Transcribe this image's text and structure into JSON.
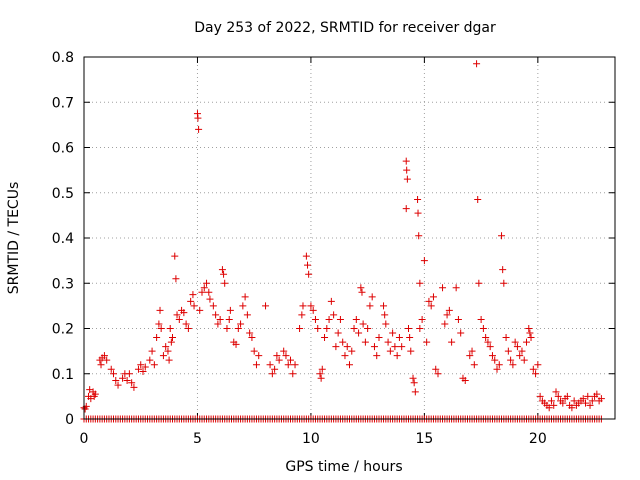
{
  "chart_data": {
    "type": "scatter",
    "title": "Day 253 of 2022, SRMTID for receiver dgar",
    "xlabel": "GPS time / hours",
    "ylabel": "SRMTID / TECUs",
    "xlim": [
      0,
      23.4
    ],
    "ylim": [
      0,
      0.8
    ],
    "xticks": [
      0,
      5,
      10,
      15,
      20
    ],
    "yticks": [
      0,
      0.1,
      0.2,
      0.3,
      0.4,
      0.5,
      0.6,
      0.7,
      0.8
    ],
    "ytick_labels": [
      "0",
      "0.1",
      "0.2",
      "0.3",
      "0.4",
      "0.5",
      "0.6",
      "0.7",
      "0.8"
    ],
    "grid": true,
    "marker": "plus",
    "color": "#dd0000",
    "series": [
      {
        "name": "SRMTID",
        "points": [
          [
            0.0,
            0.025
          ],
          [
            0.05,
            0.022
          ],
          [
            0.1,
            0.028
          ],
          [
            0.2,
            0.05
          ],
          [
            0.25,
            0.065
          ],
          [
            0.3,
            0.045
          ],
          [
            0.4,
            0.06
          ],
          [
            0.45,
            0.05
          ],
          [
            0.5,
            0.055
          ],
          [
            0.7,
            0.13
          ],
          [
            0.75,
            0.12
          ],
          [
            0.8,
            0.135
          ],
          [
            0.9,
            0.14
          ],
          [
            1.0,
            0.13
          ],
          [
            1.2,
            0.11
          ],
          [
            1.3,
            0.1
          ],
          [
            1.4,
            0.085
          ],
          [
            1.5,
            0.075
          ],
          [
            1.7,
            0.09
          ],
          [
            1.8,
            0.1
          ],
          [
            1.9,
            0.085
          ],
          [
            2.0,
            0.1
          ],
          [
            2.1,
            0.08
          ],
          [
            2.2,
            0.07
          ],
          [
            2.4,
            0.11
          ],
          [
            2.5,
            0.12
          ],
          [
            2.6,
            0.105
          ],
          [
            2.7,
            0.115
          ],
          [
            2.9,
            0.13
          ],
          [
            3.0,
            0.15
          ],
          [
            3.1,
            0.12
          ],
          [
            3.2,
            0.18
          ],
          [
            3.3,
            0.21
          ],
          [
            3.35,
            0.24
          ],
          [
            3.4,
            0.2
          ],
          [
            3.5,
            0.14
          ],
          [
            3.6,
            0.16
          ],
          [
            3.7,
            0.15
          ],
          [
            3.75,
            0.13
          ],
          [
            3.8,
            0.2
          ],
          [
            3.85,
            0.17
          ],
          [
            3.9,
            0.18
          ],
          [
            4.0,
            0.36
          ],
          [
            4.05,
            0.31
          ],
          [
            4.1,
            0.23
          ],
          [
            4.2,
            0.22
          ],
          [
            4.3,
            0.24
          ],
          [
            4.4,
            0.235
          ],
          [
            4.5,
            0.21
          ],
          [
            4.6,
            0.2
          ],
          [
            4.7,
            0.26
          ],
          [
            4.8,
            0.275
          ],
          [
            4.85,
            0.25
          ],
          [
            5.0,
            0.675
          ],
          [
            5.02,
            0.665
          ],
          [
            5.05,
            0.64
          ],
          [
            5.1,
            0.24
          ],
          [
            5.2,
            0.28
          ],
          [
            5.3,
            0.29
          ],
          [
            5.4,
            0.3
          ],
          [
            5.5,
            0.28
          ],
          [
            5.55,
            0.265
          ],
          [
            5.7,
            0.25
          ],
          [
            5.8,
            0.23
          ],
          [
            5.9,
            0.21
          ],
          [
            6.0,
            0.22
          ],
          [
            6.1,
            0.33
          ],
          [
            6.15,
            0.32
          ],
          [
            6.2,
            0.3
          ],
          [
            6.3,
            0.2
          ],
          [
            6.4,
            0.22
          ],
          [
            6.45,
            0.24
          ],
          [
            6.6,
            0.17
          ],
          [
            6.7,
            0.165
          ],
          [
            6.8,
            0.2
          ],
          [
            6.9,
            0.21
          ],
          [
            7.0,
            0.25
          ],
          [
            7.1,
            0.27
          ],
          [
            7.2,
            0.23
          ],
          [
            7.3,
            0.19
          ],
          [
            7.4,
            0.18
          ],
          [
            7.5,
            0.15
          ],
          [
            7.6,
            0.12
          ],
          [
            7.7,
            0.14
          ],
          [
            8.0,
            0.25
          ],
          [
            8.2,
            0.12
          ],
          [
            8.3,
            0.1
          ],
          [
            8.4,
            0.11
          ],
          [
            8.5,
            0.14
          ],
          [
            8.6,
            0.13
          ],
          [
            8.8,
            0.15
          ],
          [
            8.9,
            0.14
          ],
          [
            9.0,
            0.12
          ],
          [
            9.1,
            0.13
          ],
          [
            9.2,
            0.1
          ],
          [
            9.3,
            0.12
          ],
          [
            9.5,
            0.2
          ],
          [
            9.6,
            0.23
          ],
          [
            9.65,
            0.25
          ],
          [
            9.8,
            0.36
          ],
          [
            9.85,
            0.34
          ],
          [
            9.9,
            0.32
          ],
          [
            10.0,
            0.25
          ],
          [
            10.1,
            0.24
          ],
          [
            10.2,
            0.22
          ],
          [
            10.3,
            0.2
          ],
          [
            10.4,
            0.1
          ],
          [
            10.45,
            0.09
          ],
          [
            10.5,
            0.11
          ],
          [
            10.6,
            0.18
          ],
          [
            10.7,
            0.2
          ],
          [
            10.8,
            0.22
          ],
          [
            10.9,
            0.26
          ],
          [
            11.0,
            0.23
          ],
          [
            11.1,
            0.16
          ],
          [
            11.2,
            0.19
          ],
          [
            11.3,
            0.22
          ],
          [
            11.4,
            0.17
          ],
          [
            11.5,
            0.14
          ],
          [
            11.6,
            0.16
          ],
          [
            11.7,
            0.12
          ],
          [
            11.8,
            0.15
          ],
          [
            11.9,
            0.2
          ],
          [
            12.0,
            0.22
          ],
          [
            12.1,
            0.19
          ],
          [
            12.2,
            0.29
          ],
          [
            12.25,
            0.28
          ],
          [
            12.3,
            0.21
          ],
          [
            12.4,
            0.17
          ],
          [
            12.5,
            0.2
          ],
          [
            12.6,
            0.25
          ],
          [
            12.7,
            0.27
          ],
          [
            12.8,
            0.16
          ],
          [
            12.9,
            0.14
          ],
          [
            13.0,
            0.18
          ],
          [
            13.2,
            0.25
          ],
          [
            13.25,
            0.23
          ],
          [
            13.3,
            0.21
          ],
          [
            13.4,
            0.17
          ],
          [
            13.5,
            0.15
          ],
          [
            13.6,
            0.19
          ],
          [
            13.7,
            0.16
          ],
          [
            13.8,
            0.14
          ],
          [
            13.9,
            0.18
          ],
          [
            14.0,
            0.16
          ],
          [
            14.2,
            0.57
          ],
          [
            14.22,
            0.55
          ],
          [
            14.25,
            0.53
          ],
          [
            14.2,
            0.465
          ],
          [
            14.3,
            0.2
          ],
          [
            14.35,
            0.18
          ],
          [
            14.4,
            0.15
          ],
          [
            14.5,
            0.09
          ],
          [
            14.55,
            0.08
          ],
          [
            14.6,
            0.06
          ],
          [
            14.7,
            0.485
          ],
          [
            14.72,
            0.455
          ],
          [
            14.75,
            0.405
          ],
          [
            14.8,
            0.3
          ],
          [
            14.8,
            0.2
          ],
          [
            14.9,
            0.22
          ],
          [
            15.0,
            0.35
          ],
          [
            15.1,
            0.17
          ],
          [
            15.2,
            0.26
          ],
          [
            15.3,
            0.25
          ],
          [
            15.4,
            0.27
          ],
          [
            15.5,
            0.11
          ],
          [
            15.6,
            0.1
          ],
          [
            15.8,
            0.29
          ],
          [
            15.9,
            0.21
          ],
          [
            16.0,
            0.23
          ],
          [
            16.1,
            0.24
          ],
          [
            16.2,
            0.17
          ],
          [
            16.4,
            0.29
          ],
          [
            16.5,
            0.22
          ],
          [
            16.6,
            0.19
          ],
          [
            16.7,
            0.09
          ],
          [
            16.8,
            0.085
          ],
          [
            17.0,
            0.14
          ],
          [
            17.1,
            0.15
          ],
          [
            17.2,
            0.12
          ],
          [
            17.3,
            0.785
          ],
          [
            17.35,
            0.485
          ],
          [
            17.4,
            0.3
          ],
          [
            17.5,
            0.22
          ],
          [
            17.6,
            0.2
          ],
          [
            17.7,
            0.18
          ],
          [
            17.8,
            0.17
          ],
          [
            17.9,
            0.16
          ],
          [
            18.0,
            0.14
          ],
          [
            18.1,
            0.13
          ],
          [
            18.2,
            0.11
          ],
          [
            18.3,
            0.12
          ],
          [
            18.4,
            0.405
          ],
          [
            18.45,
            0.33
          ],
          [
            18.5,
            0.3
          ],
          [
            18.6,
            0.18
          ],
          [
            18.7,
            0.15
          ],
          [
            18.8,
            0.13
          ],
          [
            18.9,
            0.12
          ],
          [
            19.0,
            0.17
          ],
          [
            19.1,
            0.16
          ],
          [
            19.2,
            0.14
          ],
          [
            19.3,
            0.15
          ],
          [
            19.4,
            0.13
          ],
          [
            19.5,
            0.17
          ],
          [
            19.6,
            0.2
          ],
          [
            19.65,
            0.19
          ],
          [
            19.7,
            0.18
          ],
          [
            19.8,
            0.11
          ],
          [
            19.9,
            0.1
          ],
          [
            20.0,
            0.12
          ],
          [
            20.1,
            0.05
          ],
          [
            20.2,
            0.04
          ],
          [
            20.3,
            0.035
          ],
          [
            20.4,
            0.03
          ],
          [
            20.5,
            0.025
          ],
          [
            20.6,
            0.04
          ],
          [
            20.7,
            0.03
          ],
          [
            20.8,
            0.06
          ],
          [
            20.9,
            0.05
          ],
          [
            21.0,
            0.04
          ],
          [
            21.1,
            0.035
          ],
          [
            21.2,
            0.045
          ],
          [
            21.3,
            0.05
          ],
          [
            21.4,
            0.03
          ],
          [
            21.5,
            0.025
          ],
          [
            21.6,
            0.04
          ],
          [
            21.7,
            0.03
          ],
          [
            21.8,
            0.035
          ],
          [
            21.9,
            0.04
          ],
          [
            22.0,
            0.045
          ],
          [
            22.1,
            0.035
          ],
          [
            22.2,
            0.05
          ],
          [
            22.3,
            0.03
          ],
          [
            22.4,
            0.04
          ],
          [
            22.5,
            0.05
          ],
          [
            22.6,
            0.055
          ],
          [
            22.7,
            0.04
          ],
          [
            22.8,
            0.045
          ]
        ],
        "zero_baseline": {
          "from": 0.0,
          "to": 22.8,
          "step": 0.1,
          "value": 0
        }
      }
    ]
  }
}
